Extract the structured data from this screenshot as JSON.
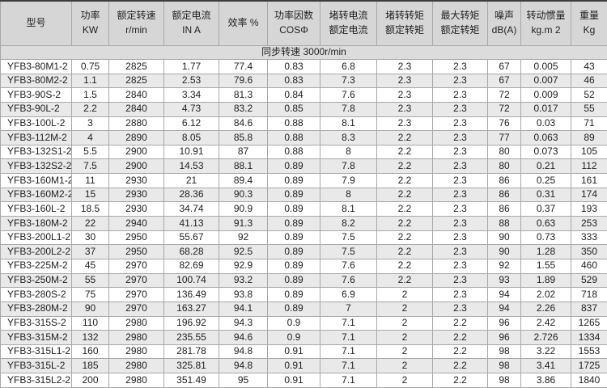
{
  "table": {
    "sync_row_label": "同步转速 3000r/min",
    "columns": [
      {
        "key": "model",
        "label_lines": [
          "型号"
        ]
      },
      {
        "key": "power-kw",
        "label_lines": [
          "功率",
          "KW"
        ]
      },
      {
        "key": "rated-speed",
        "label_lines": [
          "额定转速",
          "r/min"
        ]
      },
      {
        "key": "rated-current",
        "label_lines": [
          "额定电流",
          "IN A"
        ]
      },
      {
        "key": "efficiency",
        "label_lines": [
          "效率 %"
        ]
      },
      {
        "key": "power-factor",
        "label_lines": [
          "功率因数",
          "COSΦ"
        ]
      },
      {
        "key": "locked-rotor-current-ratio",
        "label_lines": [
          "堵转电流",
          "额定电流"
        ]
      },
      {
        "key": "locked-rotor-torque-ratio",
        "label_lines": [
          "堵转转矩",
          "额定转矩"
        ]
      },
      {
        "key": "max-torque-ratio",
        "label_lines": [
          "最大转矩",
          "额定转矩"
        ]
      },
      {
        "key": "noise",
        "label_lines": [
          "噪声",
          "dB(A)"
        ]
      },
      {
        "key": "inertia",
        "label_lines": [
          "转动惯量",
          "kg.m 2"
        ]
      },
      {
        "key": "weight",
        "label_lines": [
          "重量",
          "Kg"
        ]
      }
    ],
    "rows": [
      [
        "YFB3-80M1-2",
        "0.75",
        "2825",
        "1.77",
        "77.4",
        "0.83",
        "6.8",
        "2.3",
        "2.3",
        "67",
        "0.005",
        "43"
      ],
      [
        "YFB3-80M2-2",
        "1.1",
        "2825",
        "2.53",
        "79.6",
        "0.83",
        "7.3",
        "2.3",
        "2.3",
        "67",
        "0.007",
        "46"
      ],
      [
        "YFB3-90S-2",
        "1.5",
        "2840",
        "3.34",
        "81.3",
        "0.84",
        "7.6",
        "2.3",
        "2.3",
        "72",
        "0.009",
        "52"
      ],
      [
        "YFB3-90L-2",
        "2.2",
        "2840",
        "4.73",
        "83.2",
        "0.85",
        "7.8",
        "2.3",
        "2.3",
        "72",
        "0.017",
        "55"
      ],
      [
        "YFB3-100L-2",
        "3",
        "2880",
        "6.12",
        "84.6",
        "0.88",
        "8.1",
        "2.3",
        "2.3",
        "76",
        "0.03",
        "71"
      ],
      [
        "YFB3-112M-2",
        "4",
        "2890",
        "8.05",
        "85.8",
        "0.88",
        "8.3",
        "2.2",
        "2.3",
        "77",
        "0.063",
        "89"
      ],
      [
        "YFB3-132S1-2",
        "5.5",
        "2900",
        "10.91",
        "87",
        "0.88",
        "8",
        "2.2",
        "2.3",
        "80",
        "0.073",
        "105"
      ],
      [
        "YFB3-132S2-2",
        "7.5",
        "2900",
        "14.53",
        "88.1",
        "0.89",
        "7.8",
        "2.2",
        "2.3",
        "80",
        "0.21",
        "112"
      ],
      [
        "YFB3-160M1-2",
        "11",
        "2930",
        "21",
        "89.4",
        "0.89",
        "7.9",
        "2.2",
        "2.3",
        "86",
        "0.25",
        "161"
      ],
      [
        "YFB3-160M2-2",
        "15",
        "2930",
        "28.36",
        "90.3",
        "0.89",
        "8",
        "2.2",
        "2.3",
        "86",
        "0.31",
        "174"
      ],
      [
        "YFB3-160L-2",
        "18.5",
        "2930",
        "34.74",
        "90.9",
        "0.89",
        "8.1",
        "2.2",
        "2.3",
        "86",
        "0.37",
        "193"
      ],
      [
        "YFB3-180M-2",
        "22",
        "2940",
        "41.13",
        "91.3",
        "0.89",
        "8.2",
        "2.2",
        "2.3",
        "88",
        "0.63",
        "253"
      ],
      [
        "YFB3-200L1-2",
        "30",
        "2950",
        "55.67",
        "92",
        "0.89",
        "7.5",
        "2.2",
        "2.3",
        "90",
        "0.73",
        "333"
      ],
      [
        "YFB3-200L2-2",
        "37",
        "2950",
        "68.28",
        "92.5",
        "0.89",
        "7.5",
        "2.2",
        "2.3",
        "90",
        "1.28",
        "350"
      ],
      [
        "YFB3-225M-2",
        "45",
        "2970",
        "82.69",
        "92.9",
        "0.89",
        "7.6",
        "2.2",
        "2.3",
        "92",
        "1.55",
        "460"
      ],
      [
        "YFB3-250M-2",
        "55",
        "2970",
        "100.74",
        "93.2",
        "0.89",
        "7.6",
        "2.2",
        "2.3",
        "93",
        "1.89",
        "529"
      ],
      [
        "YFB3-280S-2",
        "75",
        "2970",
        "136.49",
        "93.8",
        "0.89",
        "6.9",
        "2",
        "2.3",
        "94",
        "2.02",
        "718"
      ],
      [
        "YFB3-280M-2",
        "90",
        "2970",
        "163.27",
        "94.1",
        "0.89",
        "7",
        "2",
        "2.3",
        "94",
        "2.26",
        "837"
      ],
      [
        "YFB3-315S-2",
        "110",
        "2980",
        "196.92",
        "94.3",
        "0.9",
        "7.1",
        "2",
        "2.2",
        "96",
        "2.42",
        "1265"
      ],
      [
        "YFB3-315M-2",
        "132",
        "2980",
        "235.55",
        "94.6",
        "0.9",
        "7.1",
        "2",
        "2.2",
        "96",
        "2.726",
        "1334"
      ],
      [
        "YFB3-315L1-2",
        "160",
        "2980",
        "281.78",
        "94.8",
        "0.91",
        "7.1",
        "2",
        "2.2",
        "98",
        "3.22",
        "1553"
      ],
      [
        "YFB3-315L-2",
        "185",
        "2980",
        "325.81",
        "94.8",
        "0.91",
        "7.1",
        "2",
        "2.2",
        "98",
        "3.41",
        "1725"
      ],
      [
        "YFB3-315L2-2",
        "200",
        "2980",
        "351.49",
        "95",
        "0.91",
        "7.1",
        "2",
        "2.2",
        "98",
        "3.86",
        "1840"
      ]
    ],
    "colors": {
      "header_bg": "#d6d6d6",
      "sync_row_bg": "#dcdcdc",
      "alt_row_bg": "#e9e9e9",
      "row_bg": "#ffffff",
      "grid_line": "#a8a8a8",
      "outer_border": "#4a4a4a",
      "text": "#222222"
    }
  }
}
